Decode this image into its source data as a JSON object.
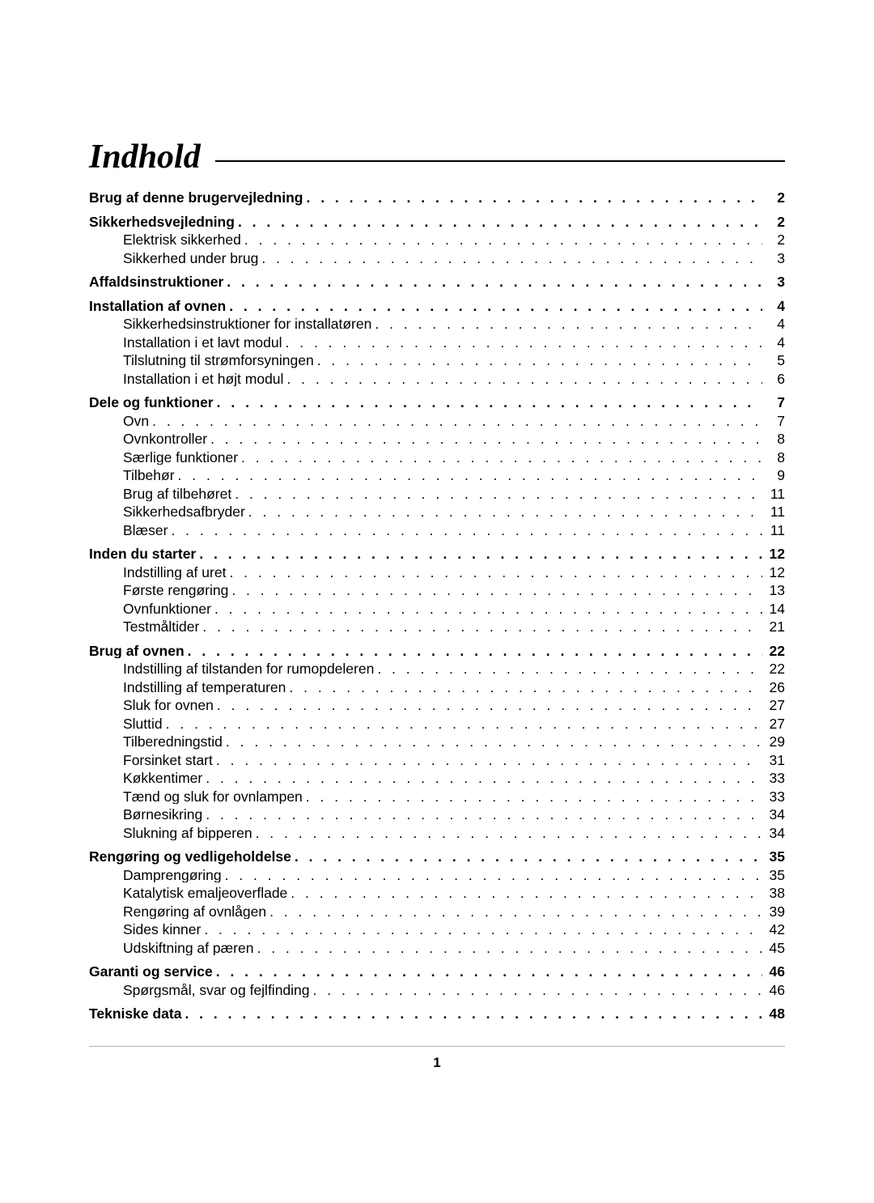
{
  "title": "Indhold",
  "page_number": "1",
  "colors": {
    "text": "#000000",
    "background": "#ffffff",
    "footer_line": "#b0b0b0"
  },
  "typography": {
    "title_font_family": "Times New Roman",
    "title_font_style": "italic bold",
    "title_font_size_pt": 32,
    "body_font_family": "Arial",
    "body_font_size_pt": 13
  },
  "toc": [
    {
      "label": "Brug af denne brugervejledning",
      "page": "2",
      "items": []
    },
    {
      "label": "Sikkerhedsvejledning",
      "page": "2",
      "items": [
        {
          "label": "Elektrisk sikkerhed",
          "page": "2"
        },
        {
          "label": "Sikkerhed under brug",
          "page": "3"
        }
      ]
    },
    {
      "label": "Affaldsinstruktioner",
      "page": "3",
      "items": []
    },
    {
      "label": "Installation af ovnen",
      "page": "4",
      "items": [
        {
          "label": "Sikkerhedsinstruktioner for installatøren",
          "page": "4"
        },
        {
          "label": "Installation i et lavt modul",
          "page": "4"
        },
        {
          "label": "Tilslutning til strømforsyningen",
          "page": "5"
        },
        {
          "label": "Installation i et højt modul",
          "page": "6"
        }
      ]
    },
    {
      "label": "Dele og funktioner",
      "page": "7",
      "items": [
        {
          "label": "Ovn",
          "page": "7"
        },
        {
          "label": "Ovnkontroller",
          "page": "8"
        },
        {
          "label": "Særlige funktioner",
          "page": "8"
        },
        {
          "label": "Tilbehør",
          "page": "9"
        },
        {
          "label": "Brug af tilbehøret",
          "page": "11"
        },
        {
          "label": "Sikkerhedsafbryder",
          "page": "11"
        },
        {
          "label": "Blæser",
          "page": "11"
        }
      ]
    },
    {
      "label": "Inden du starter",
      "page": "12",
      "items": [
        {
          "label": "Indstilling af uret",
          "page": "12"
        },
        {
          "label": "Første rengøring",
          "page": "13"
        },
        {
          "label": "Ovnfunktioner",
          "page": "14"
        },
        {
          "label": "Testmåltider",
          "page": "21"
        }
      ]
    },
    {
      "label": "Brug af ovnen",
      "page": "22",
      "items": [
        {
          "label": "Indstilling af tilstanden for rumopdeleren",
          "page": "22"
        },
        {
          "label": "Indstilling af temperaturen",
          "page": "26"
        },
        {
          "label": "Sluk for ovnen",
          "page": "27"
        },
        {
          "label": "Sluttid",
          "page": "27"
        },
        {
          "label": "Tilberedningstid",
          "page": "29"
        },
        {
          "label": "Forsinket start",
          "page": "31"
        },
        {
          "label": "Køkkentimer",
          "page": "33"
        },
        {
          "label": "Tænd og sluk for ovnlampen",
          "page": "33"
        },
        {
          "label": "Børnesikring",
          "page": "34"
        },
        {
          "label": "Slukning af bipperen",
          "page": "34"
        }
      ]
    },
    {
      "label": "Rengøring og vedligeholdelse",
      "page": "35",
      "items": [
        {
          "label": "Damprengøring",
          "page": "35"
        },
        {
          "label": "Katalytisk emaljeoverflade",
          "page": "38"
        },
        {
          "label": "Rengøring af ovnlågen",
          "page": "39"
        },
        {
          "label": "Sides kinner",
          "page": "42"
        },
        {
          "label": "Udskiftning af pæren",
          "page": "45"
        }
      ]
    },
    {
      "label": "Garanti og service",
      "page": "46",
      "items": [
        {
          "label": "Spørgsmål, svar og fejlfinding",
          "page": "46"
        }
      ]
    },
    {
      "label": "Tekniske data",
      "page": "48",
      "items": []
    }
  ]
}
